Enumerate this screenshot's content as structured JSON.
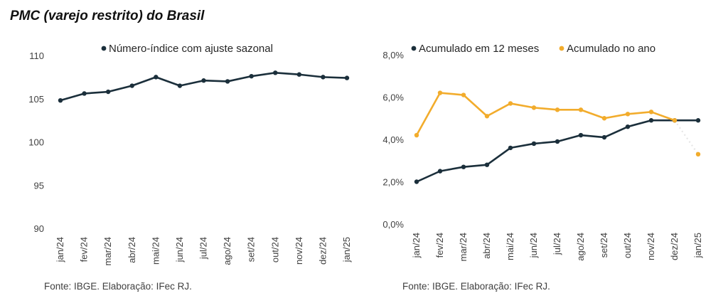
{
  "title": "PMC (varejo restrito) do Brasil",
  "colors": {
    "dark": "#1b2f3b",
    "gold": "#f2ac2c",
    "text": "#404040"
  },
  "chart_data": [
    {
      "type": "line",
      "categories": [
        "jan/24",
        "fev/24",
        "mar/24",
        "abr/24",
        "mai/24",
        "jun/24",
        "jul/24",
        "ago/24",
        "set/24",
        "out/24",
        "nov/24",
        "dez/24",
        "jan/25"
      ],
      "series": [
        {
          "name": "Número-índice com ajuste sazonal",
          "color": "#1b2f3b",
          "values": [
            104.8,
            105.6,
            105.8,
            106.5,
            107.5,
            106.5,
            107.1,
            107.0,
            107.6,
            108.0,
            107.8,
            107.5,
            107.4
          ]
        }
      ],
      "yticks": [
        "110",
        "105",
        "100",
        "95",
        "90"
      ],
      "ylim": [
        90,
        110
      ],
      "legend": "top",
      "grid": false,
      "source": "Fonte: IBGE. Elaboração: IFec RJ."
    },
    {
      "type": "line",
      "categories": [
        "jan/24",
        "fev/24",
        "mar/24",
        "abr/24",
        "mai/24",
        "jun/24",
        "jul/24",
        "ago/24",
        "set/24",
        "out/24",
        "nov/24",
        "dez/24",
        "jan/25"
      ],
      "series": [
        {
          "name": "Acumulado em 12 meses",
          "color": "#1b2f3b",
          "values": [
            2.0,
            2.5,
            2.7,
            2.8,
            3.6,
            3.8,
            3.9,
            4.2,
            4.1,
            4.6,
            4.9,
            4.9,
            4.9
          ]
        },
        {
          "name": "Acumulado no ano",
          "color": "#f2ac2c",
          "values": [
            4.2,
            6.2,
            6.1,
            5.1,
            5.7,
            5.5,
            5.4,
            5.4,
            5.0,
            5.2,
            5.3,
            4.9,
            3.3
          ]
        }
      ],
      "yticks": [
        "8,0%",
        "6,0%",
        "4,0%",
        "2,0%",
        "0,0%"
      ],
      "ylim": [
        0,
        8
      ],
      "legend": "top",
      "grid": false,
      "source": "Fonte: IBGE. Elaboração: IFec RJ."
    }
  ]
}
